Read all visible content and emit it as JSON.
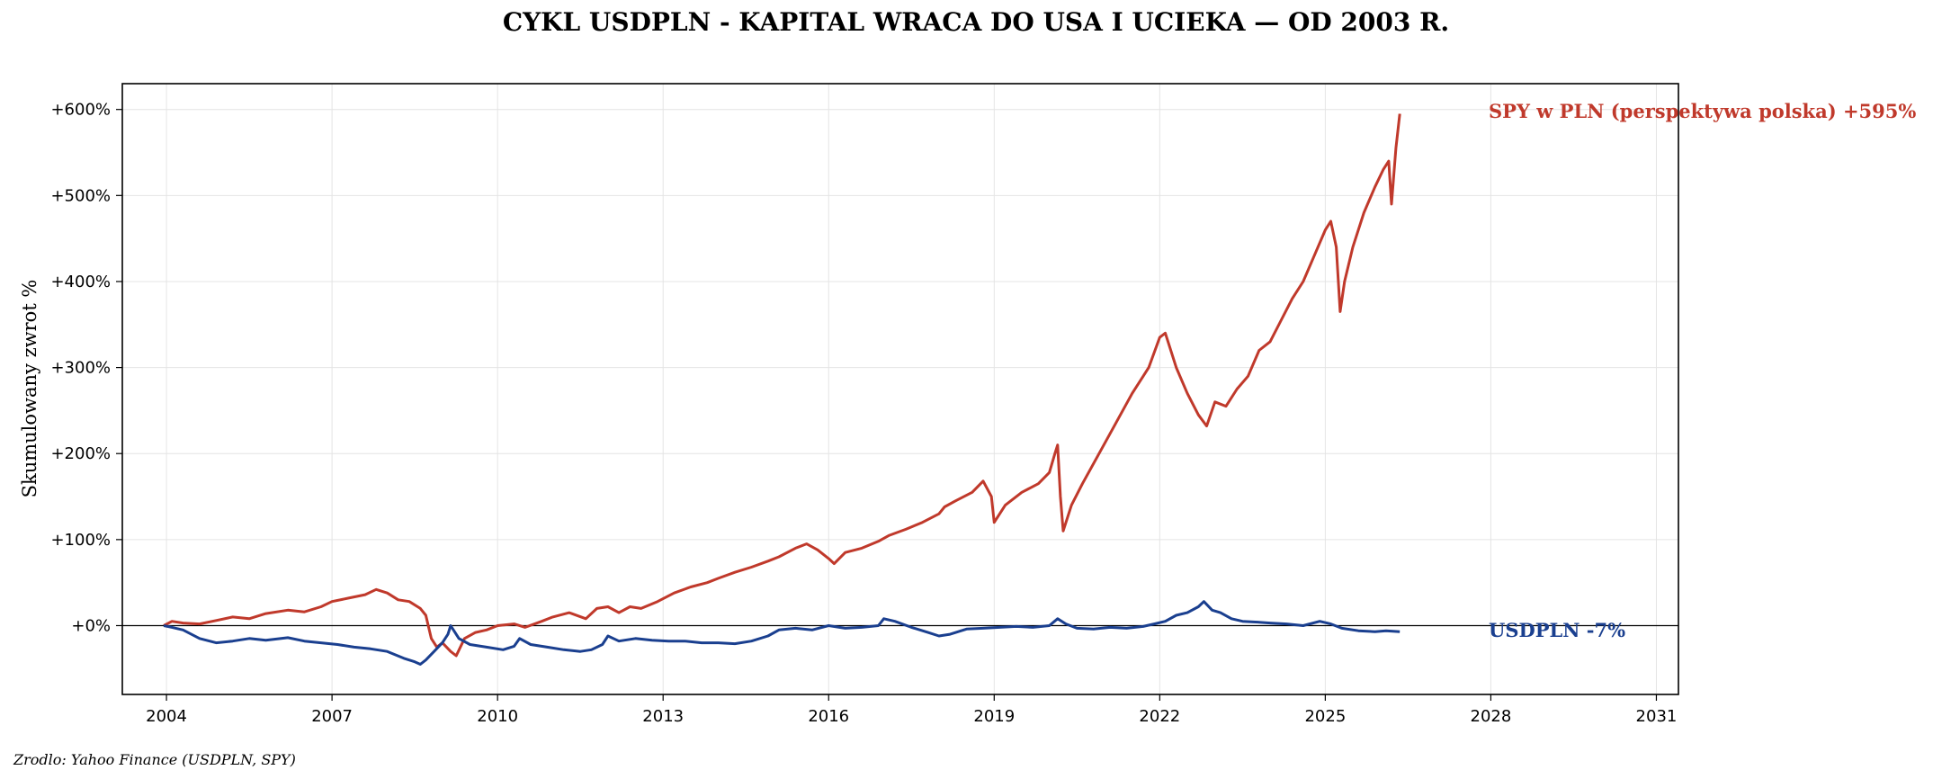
{
  "chart_data": {
    "type": "line",
    "title": "CYKL USDPLN - KAPITAL WRACA DO USA I UCIEKA — OD 2003 R.",
    "xlabel": "",
    "ylabel": "Skumulowany zwrot %",
    "source_note": "Zrodlo: Yahoo Finance (USDPLN, SPY)",
    "xlim": [
      2003.2,
      2031.4
    ],
    "ylim": [
      -80,
      630
    ],
    "x_ticks": [
      2004,
      2007,
      2010,
      2013,
      2016,
      2019,
      2022,
      2025,
      2028,
      2031
    ],
    "x_tick_labels": [
      "2004",
      "2007",
      "2010",
      "2013",
      "2016",
      "2019",
      "2022",
      "2025",
      "2028",
      "2031"
    ],
    "y_ticks": [
      0,
      100,
      200,
      300,
      400,
      500,
      600
    ],
    "y_tick_labels": [
      "+0%",
      "+100%",
      "+200%",
      "+300%",
      "+400%",
      "+500%",
      "+600%"
    ],
    "grid": true,
    "zero_line": true,
    "series": [
      {
        "name": "SPY w PLN (perspektywa polska)",
        "end_label": "SPY w PLN (perspektywa polska)  +595%",
        "color": "#c0392b",
        "points": [
          [
            2003.95,
            0
          ],
          [
            2004.1,
            5
          ],
          [
            2004.3,
            3
          ],
          [
            2004.6,
            2
          ],
          [
            2004.9,
            6
          ],
          [
            2005.2,
            10
          ],
          [
            2005.5,
            8
          ],
          [
            2005.8,
            14
          ],
          [
            2006.2,
            18
          ],
          [
            2006.5,
            16
          ],
          [
            2006.8,
            22
          ],
          [
            2007.0,
            28
          ],
          [
            2007.3,
            32
          ],
          [
            2007.6,
            36
          ],
          [
            2007.8,
            42
          ],
          [
            2008.0,
            38
          ],
          [
            2008.2,
            30
          ],
          [
            2008.4,
            28
          ],
          [
            2008.6,
            20
          ],
          [
            2008.7,
            12
          ],
          [
            2008.8,
            -15
          ],
          [
            2008.9,
            -25
          ],
          [
            2009.0,
            -20
          ],
          [
            2009.15,
            -30
          ],
          [
            2009.25,
            -35
          ],
          [
            2009.4,
            -15
          ],
          [
            2009.6,
            -8
          ],
          [
            2009.8,
            -5
          ],
          [
            2010.0,
            0
          ],
          [
            2010.3,
            2
          ],
          [
            2010.5,
            -2
          ],
          [
            2010.8,
            5
          ],
          [
            2011.0,
            10
          ],
          [
            2011.3,
            15
          ],
          [
            2011.6,
            8
          ],
          [
            2011.8,
            20
          ],
          [
            2012.0,
            22
          ],
          [
            2012.2,
            15
          ],
          [
            2012.4,
            22
          ],
          [
            2012.6,
            20
          ],
          [
            2012.9,
            28
          ],
          [
            2013.2,
            38
          ],
          [
            2013.5,
            45
          ],
          [
            2013.8,
            50
          ],
          [
            2014.0,
            55
          ],
          [
            2014.3,
            62
          ],
          [
            2014.6,
            68
          ],
          [
            2014.9,
            75
          ],
          [
            2015.1,
            80
          ],
          [
            2015.4,
            90
          ],
          [
            2015.6,
            95
          ],
          [
            2015.8,
            88
          ],
          [
            2016.0,
            78
          ],
          [
            2016.1,
            72
          ],
          [
            2016.3,
            85
          ],
          [
            2016.6,
            90
          ],
          [
            2016.9,
            98
          ],
          [
            2017.1,
            105
          ],
          [
            2017.4,
            112
          ],
          [
            2017.7,
            120
          ],
          [
            2018.0,
            130
          ],
          [
            2018.1,
            138
          ],
          [
            2018.3,
            145
          ],
          [
            2018.6,
            155
          ],
          [
            2018.8,
            168
          ],
          [
            2018.95,
            150
          ],
          [
            2019.0,
            120
          ],
          [
            2019.2,
            140
          ],
          [
            2019.5,
            155
          ],
          [
            2019.8,
            165
          ],
          [
            2020.0,
            178
          ],
          [
            2020.1,
            200
          ],
          [
            2020.15,
            210
          ],
          [
            2020.2,
            150
          ],
          [
            2020.25,
            110
          ],
          [
            2020.4,
            140
          ],
          [
            2020.6,
            165
          ],
          [
            2020.9,
            200
          ],
          [
            2021.2,
            235
          ],
          [
            2021.5,
            270
          ],
          [
            2021.8,
            300
          ],
          [
            2022.0,
            335
          ],
          [
            2022.1,
            340
          ],
          [
            2022.3,
            300
          ],
          [
            2022.5,
            270
          ],
          [
            2022.7,
            245
          ],
          [
            2022.85,
            232
          ],
          [
            2023.0,
            260
          ],
          [
            2023.2,
            255
          ],
          [
            2023.4,
            275
          ],
          [
            2023.6,
            290
          ],
          [
            2023.8,
            320
          ],
          [
            2024.0,
            330
          ],
          [
            2024.2,
            355
          ],
          [
            2024.4,
            380
          ],
          [
            2024.6,
            400
          ],
          [
            2024.8,
            430
          ],
          [
            2025.0,
            460
          ],
          [
            2025.1,
            470
          ],
          [
            2025.2,
            440
          ],
          [
            2025.27,
            365
          ],
          [
            2025.35,
            400
          ],
          [
            2025.5,
            440
          ],
          [
            2025.7,
            480
          ],
          [
            2025.9,
            510
          ],
          [
            2026.05,
            530
          ],
          [
            2026.15,
            540
          ],
          [
            2026.2,
            490
          ],
          [
            2026.28,
            555
          ],
          [
            2026.35,
            595
          ]
        ]
      },
      {
        "name": "USDPLN",
        "end_label": "USDPLN  -7%",
        "color": "#1a3f8f",
        "points": [
          [
            2003.95,
            0
          ],
          [
            2004.1,
            -2
          ],
          [
            2004.3,
            -5
          ],
          [
            2004.6,
            -15
          ],
          [
            2004.9,
            -20
          ],
          [
            2005.2,
            -18
          ],
          [
            2005.5,
            -15
          ],
          [
            2005.8,
            -17
          ],
          [
            2006.2,
            -14
          ],
          [
            2006.5,
            -18
          ],
          [
            2006.8,
            -20
          ],
          [
            2007.1,
            -22
          ],
          [
            2007.4,
            -25
          ],
          [
            2007.7,
            -27
          ],
          [
            2008.0,
            -30
          ],
          [
            2008.3,
            -38
          ],
          [
            2008.5,
            -42
          ],
          [
            2008.6,
            -45
          ],
          [
            2008.7,
            -40
          ],
          [
            2008.85,
            -30
          ],
          [
            2009.0,
            -20
          ],
          [
            2009.1,
            -10
          ],
          [
            2009.15,
            0
          ],
          [
            2009.3,
            -15
          ],
          [
            2009.5,
            -22
          ],
          [
            2009.8,
            -25
          ],
          [
            2010.1,
            -28
          ],
          [
            2010.3,
            -24
          ],
          [
            2010.4,
            -15
          ],
          [
            2010.6,
            -22
          ],
          [
            2010.9,
            -25
          ],
          [
            2011.2,
            -28
          ],
          [
            2011.5,
            -30
          ],
          [
            2011.7,
            -28
          ],
          [
            2011.9,
            -22
          ],
          [
            2012.0,
            -12
          ],
          [
            2012.2,
            -18
          ],
          [
            2012.5,
            -15
          ],
          [
            2012.8,
            -17
          ],
          [
            2013.1,
            -18
          ],
          [
            2013.4,
            -18
          ],
          [
            2013.7,
            -20
          ],
          [
            2014.0,
            -20
          ],
          [
            2014.3,
            -21
          ],
          [
            2014.6,
            -18
          ],
          [
            2014.9,
            -12
          ],
          [
            2015.1,
            -5
          ],
          [
            2015.4,
            -3
          ],
          [
            2015.7,
            -5
          ],
          [
            2016.0,
            0
          ],
          [
            2016.3,
            -3
          ],
          [
            2016.6,
            -2
          ],
          [
            2016.9,
            0
          ],
          [
            2017.0,
            8
          ],
          [
            2017.2,
            5
          ],
          [
            2017.5,
            -2
          ],
          [
            2017.8,
            -8
          ],
          [
            2018.0,
            -12
          ],
          [
            2018.2,
            -10
          ],
          [
            2018.5,
            -4
          ],
          [
            2018.8,
            -3
          ],
          [
            2019.1,
            -2
          ],
          [
            2019.4,
            -1
          ],
          [
            2019.7,
            -2
          ],
          [
            2020.0,
            0
          ],
          [
            2020.15,
            8
          ],
          [
            2020.3,
            2
          ],
          [
            2020.5,
            -3
          ],
          [
            2020.8,
            -4
          ],
          [
            2021.1,
            -2
          ],
          [
            2021.4,
            -3
          ],
          [
            2021.7,
            -1
          ],
          [
            2021.9,
            2
          ],
          [
            2022.1,
            5
          ],
          [
            2022.3,
            12
          ],
          [
            2022.5,
            15
          ],
          [
            2022.7,
            22
          ],
          [
            2022.8,
            28
          ],
          [
            2022.95,
            18
          ],
          [
            2023.1,
            15
          ],
          [
            2023.3,
            8
          ],
          [
            2023.5,
            5
          ],
          [
            2023.8,
            4
          ],
          [
            2024.0,
            3
          ],
          [
            2024.3,
            2
          ],
          [
            2024.6,
            0
          ],
          [
            2024.9,
            5
          ],
          [
            2025.1,
            2
          ],
          [
            2025.3,
            -3
          ],
          [
            2025.6,
            -6
          ],
          [
            2025.9,
            -7
          ],
          [
            2026.1,
            -6
          ],
          [
            2026.35,
            -7
          ]
        ]
      }
    ]
  }
}
